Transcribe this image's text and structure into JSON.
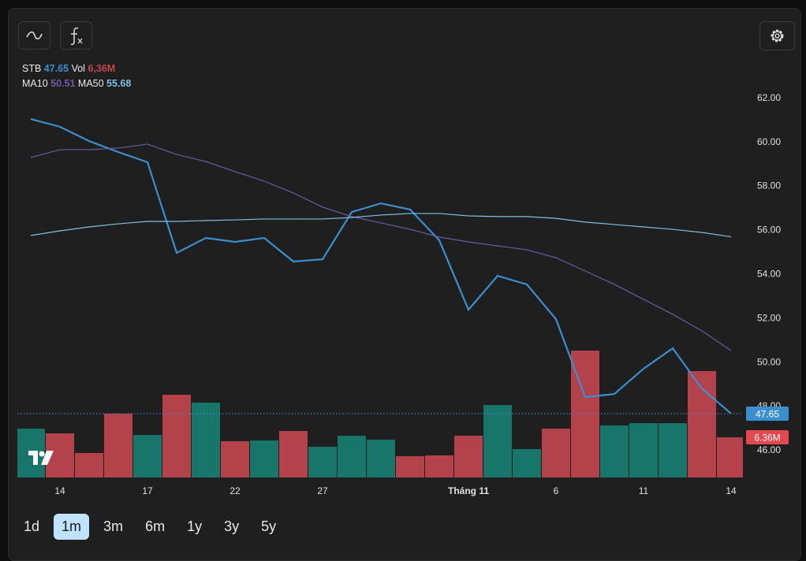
{
  "chart_data": {
    "type": "line",
    "categories": [
      null,
      "14",
      null,
      null,
      "17",
      null,
      null,
      "22",
      null,
      null,
      "27",
      null,
      null,
      null,
      null,
      "Tháng 11",
      null,
      null,
      "6",
      null,
      null,
      "11",
      null,
      null,
      "14"
    ],
    "series": [
      {
        "name": "STB",
        "color": "#3a8fd0",
        "values": [
          61.03,
          60.68,
          60.03,
          59.53,
          59.07,
          54.95,
          55.63,
          55.45,
          55.63,
          54.56,
          54.66,
          56.81,
          57.2,
          56.92,
          55.52,
          52.37,
          53.91,
          53.52,
          51.94,
          48.4,
          48.54,
          49.69,
          50.62,
          48.79,
          47.65
        ]
      },
      {
        "name": "MA10",
        "color": "#6d5aa3",
        "values": [
          59.28,
          59.64,
          59.64,
          59.71,
          59.89,
          59.42,
          59.1,
          58.64,
          58.21,
          57.67,
          57.03,
          56.6,
          56.31,
          56.02,
          55.67,
          55.45,
          55.27,
          55.09,
          54.73,
          54.13,
          53.52,
          52.84,
          52.16,
          51.41,
          50.51
        ]
      },
      {
        "name": "MA50",
        "color": "#7cc0e2",
        "values": [
          55.74,
          55.95,
          56.13,
          56.27,
          56.38,
          56.38,
          56.42,
          56.45,
          56.49,
          56.49,
          56.49,
          56.56,
          56.67,
          56.74,
          56.74,
          56.63,
          56.6,
          56.6,
          56.52,
          56.35,
          56.24,
          56.13,
          56.02,
          55.88,
          55.68
        ]
      }
    ],
    "volume": {
      "name": "Vol",
      "legend_label": "6,36M",
      "tag_label": "6.36M",
      "color": "#c2464c",
      "values": [
        7.73,
        6.98,
        3.87,
        10.1,
        6.73,
        13.09,
        11.85,
        5.74,
        5.86,
        7.36,
        4.86,
        6.61,
        5.99,
        3.37,
        3.49,
        6.61,
        11.47,
        4.49,
        7.73,
        20.08,
        8.23,
        8.6,
        8.6,
        16.84,
        6.36
      ],
      "colors": [
        "#17756a",
        "#b4424a",
        "#b4424a",
        "#b4424a",
        "#17756a",
        "#b4424a",
        "#17756a",
        "#b4424a",
        "#17756a",
        "#b4424a",
        "#17756a",
        "#17756a",
        "#17756a",
        "#b4424a",
        "#b4424a",
        "#b4424a",
        "#17756a",
        "#17756a",
        "#b4424a",
        "#b4424a",
        "#17756a",
        "#17756a",
        "#17756a",
        "#b4424a",
        "#b4424a"
      ]
    },
    "ylim": [
      44.75,
      62.5
    ],
    "yticks": [
      {
        "value": 46,
        "label": "46.00"
      },
      {
        "value": 48,
        "label": "48.00"
      },
      {
        "value": 50,
        "label": "50.00"
      },
      {
        "value": 52,
        "label": "52.00"
      },
      {
        "value": 54,
        "label": "54.00"
      },
      {
        "value": 56,
        "label": "56.00"
      },
      {
        "value": 58,
        "label": "58.00"
      },
      {
        "value": 60,
        "label": "60.00"
      },
      {
        "value": 62,
        "label": "62.00"
      }
    ],
    "grid": false
  },
  "range_buttons": {
    "labels": [
      "1d",
      "1m",
      "3m",
      "6m",
      "1y",
      "3y",
      "5y"
    ],
    "active": "1m"
  }
}
